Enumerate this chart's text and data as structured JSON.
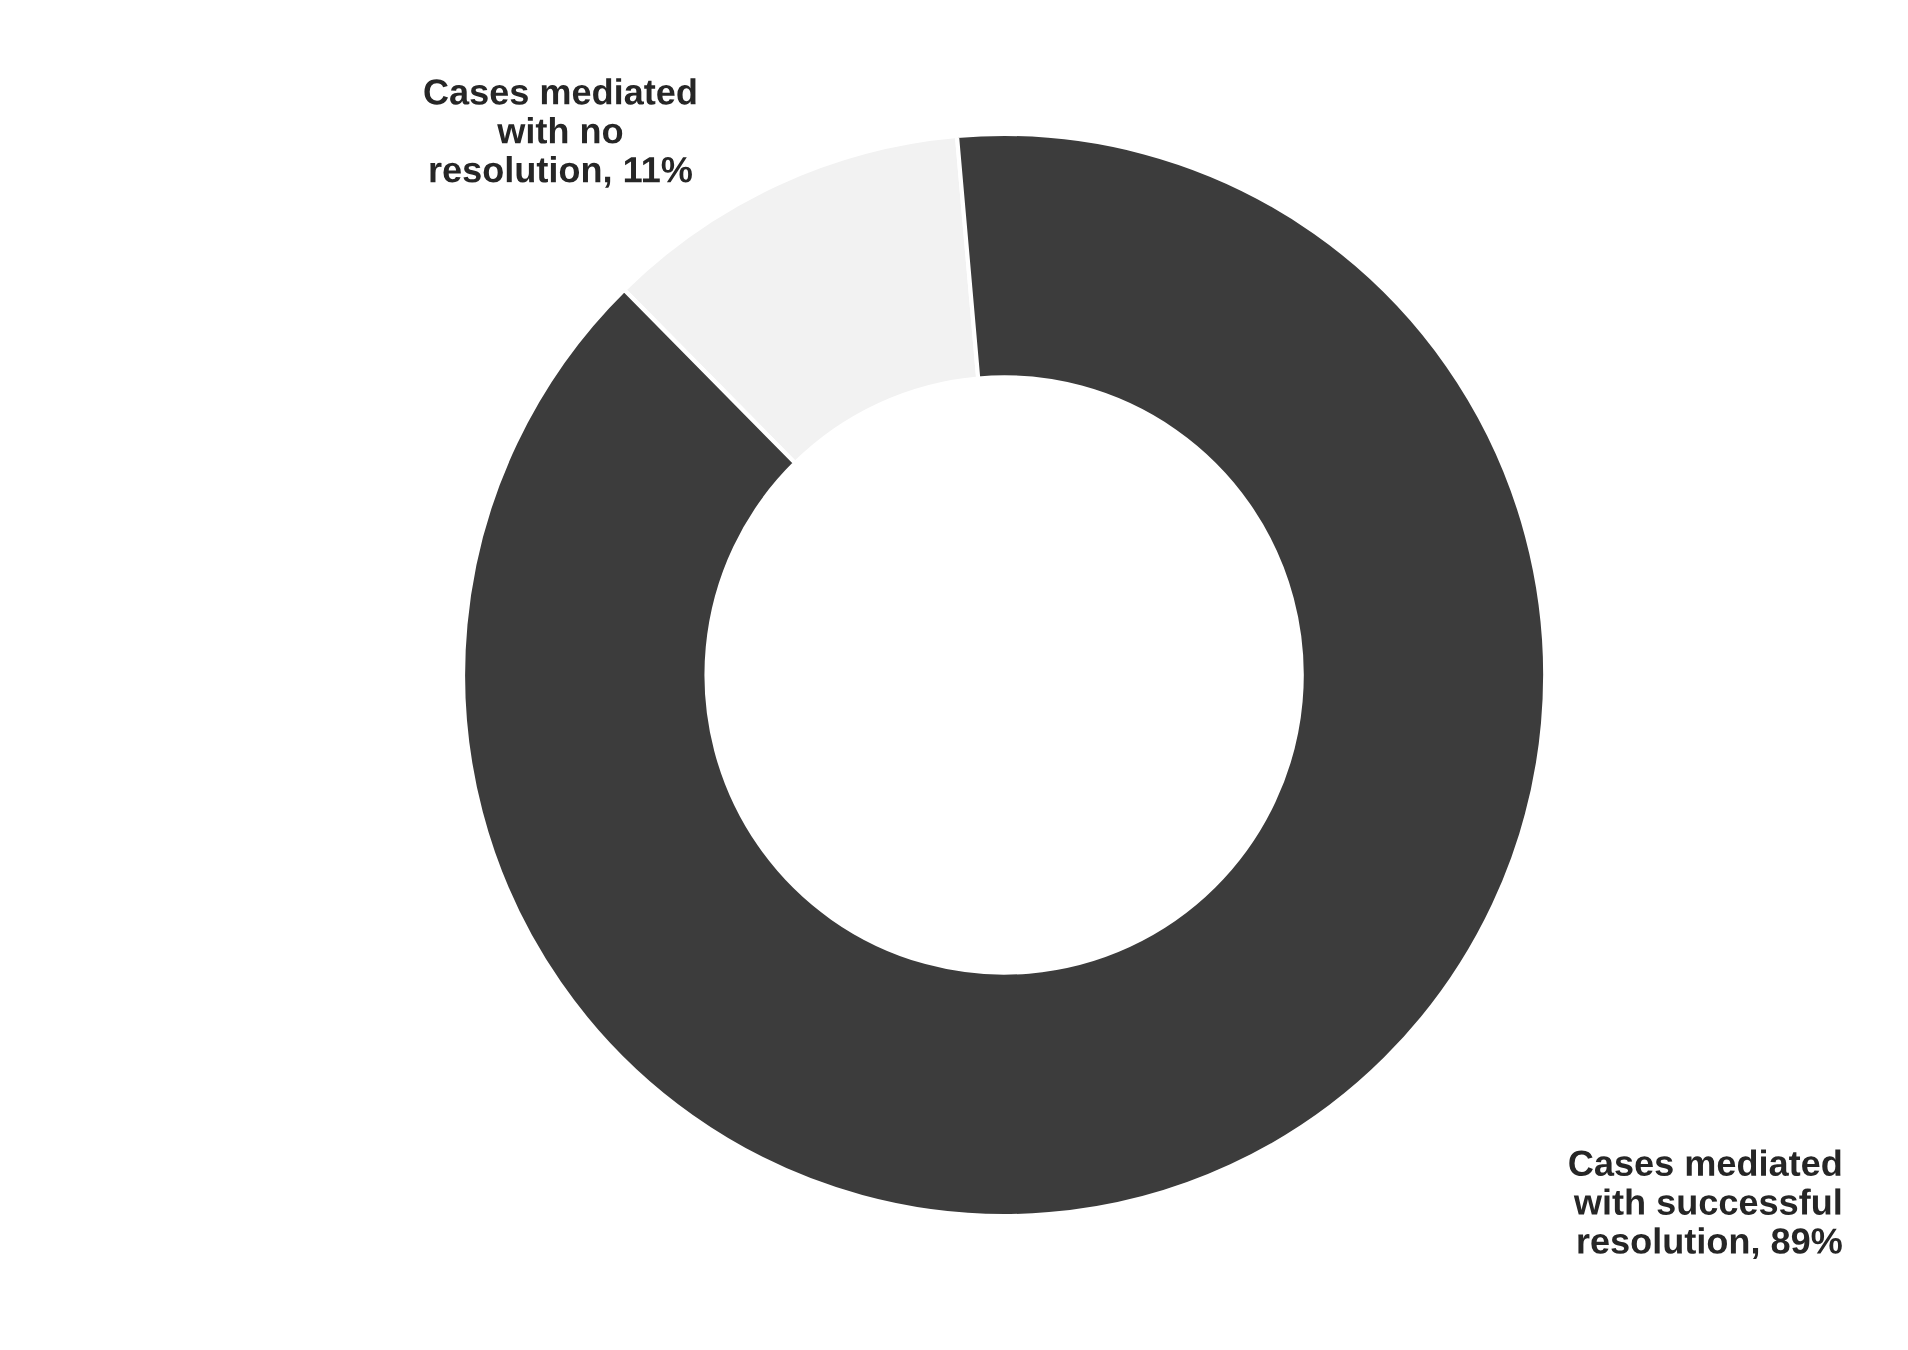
{
  "chart_data": {
    "type": "donut",
    "categories": [
      "Cases mediated\nwith no\nresolution",
      "Cases mediated\nwith successful\nresolution"
    ],
    "values": [
      11,
      89
    ],
    "value_labels": [
      "11%",
      "89%"
    ],
    "colors": [
      "#f2f2f2",
      "#3c3c3c"
    ],
    "legend": false
  }
}
